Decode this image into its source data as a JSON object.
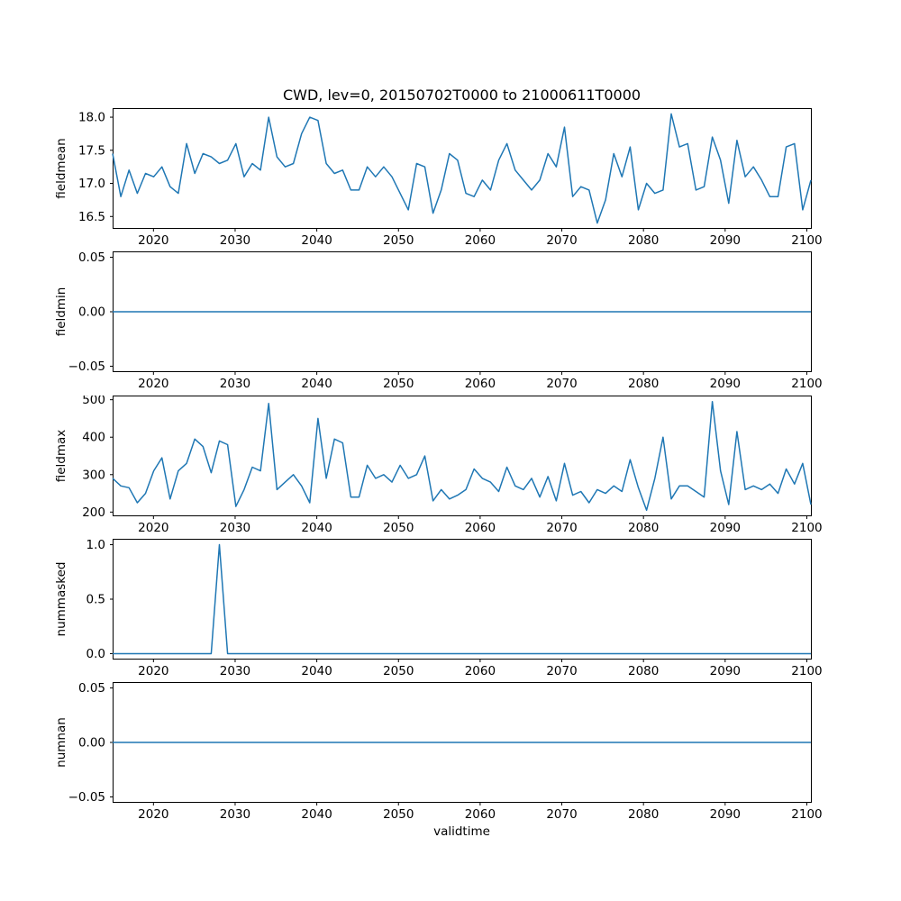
{
  "chart_title": "CWD, lev=0, 20150702T0000 to 21000611T0000",
  "xlabel": "validtime",
  "line_color": "#1f77b4",
  "chart_data": [
    {
      "type": "line",
      "ylabel": "fieldmean",
      "ylim": [
        16.32,
        18.13
      ],
      "yticks": [
        16.5,
        17.0,
        17.5,
        18.0
      ],
      "ytick_labels": [
        "16.5",
        "17.0",
        "17.5",
        "18.0"
      ],
      "xlim": [
        2015,
        2100.5
      ],
      "xticks": [
        2020,
        2030,
        2040,
        2050,
        2060,
        2070,
        2080,
        2090,
        2100
      ],
      "x": {
        "start": 2015,
        "end": 2100,
        "step": 1,
        "count": 86
      },
      "values": [
        17.45,
        16.8,
        17.2,
        16.85,
        17.15,
        17.1,
        17.25,
        16.95,
        16.85,
        17.6,
        17.15,
        17.45,
        17.4,
        17.3,
        17.35,
        17.6,
        17.1,
        17.3,
        17.2,
        18.0,
        17.4,
        17.25,
        17.3,
        17.75,
        18.0,
        17.95,
        17.3,
        17.15,
        17.2,
        16.9,
        16.9,
        17.25,
        17.1,
        17.25,
        17.1,
        16.85,
        16.6,
        17.3,
        17.25,
        16.55,
        16.9,
        17.45,
        17.35,
        16.85,
        16.8,
        17.05,
        16.9,
        17.35,
        17.6,
        17.2,
        17.05,
        16.9,
        17.05,
        17.45,
        17.25,
        17.85,
        16.8,
        16.95,
        16.9,
        16.4,
        16.75,
        17.45,
        17.1,
        17.55,
        16.6,
        17.0,
        16.85,
        16.9,
        18.05,
        17.55,
        17.6,
        16.9,
        16.95,
        17.7,
        17.35,
        16.7,
        17.65,
        17.1,
        17.25,
        17.05,
        16.8,
        16.8,
        17.55,
        17.6,
        16.6,
        17.05
      ]
    },
    {
      "type": "line",
      "ylabel": "fieldmin",
      "ylim": [
        -0.055,
        0.055
      ],
      "yticks": [
        -0.05,
        0.0,
        0.05
      ],
      "ytick_labels": [
        "−0.05",
        "0.00",
        "0.05"
      ],
      "xlim": [
        2015,
        2100.5
      ],
      "xticks": [
        2020,
        2030,
        2040,
        2050,
        2060,
        2070,
        2080,
        2090,
        2100
      ],
      "x": {
        "start": 2015,
        "end": 2100,
        "step": 1,
        "count": 86
      },
      "values": [
        0,
        0,
        0,
        0,
        0,
        0,
        0,
        0,
        0,
        0,
        0,
        0,
        0,
        0,
        0,
        0,
        0,
        0,
        0,
        0,
        0,
        0,
        0,
        0,
        0,
        0,
        0,
        0,
        0,
        0,
        0,
        0,
        0,
        0,
        0,
        0,
        0,
        0,
        0,
        0,
        0,
        0,
        0,
        0,
        0,
        0,
        0,
        0,
        0,
        0,
        0,
        0,
        0,
        0,
        0,
        0,
        0,
        0,
        0,
        0,
        0,
        0,
        0,
        0,
        0,
        0,
        0,
        0,
        0,
        0,
        0,
        0,
        0,
        0,
        0,
        0,
        0,
        0,
        0,
        0,
        0,
        0,
        0,
        0,
        0,
        0
      ]
    },
    {
      "type": "line",
      "ylabel": "fieldmax",
      "ylim": [
        190,
        510
      ],
      "yticks": [
        200,
        300,
        400,
        500
      ],
      "ytick_labels": [
        "200",
        "300",
        "400",
        "500"
      ],
      "xlim": [
        2015,
        2100.5
      ],
      "xticks": [
        2020,
        2030,
        2040,
        2050,
        2060,
        2070,
        2080,
        2090,
        2100
      ],
      "x": {
        "start": 2015,
        "end": 2100,
        "step": 1,
        "count": 86
      },
      "values": [
        290,
        270,
        265,
        225,
        250,
        310,
        345,
        235,
        310,
        330,
        395,
        375,
        305,
        390,
        380,
        215,
        260,
        320,
        310,
        490,
        260,
        280,
        300,
        270,
        225,
        450,
        290,
        395,
        385,
        240,
        240,
        325,
        290,
        300,
        280,
        325,
        290,
        300,
        350,
        230,
        260,
        235,
        245,
        260,
        315,
        290,
        280,
        255,
        320,
        270,
        260,
        290,
        240,
        295,
        230,
        330,
        245,
        255,
        225,
        260,
        250,
        270,
        255,
        340,
        265,
        205,
        290,
        400,
        235,
        270,
        270,
        255,
        240,
        495,
        310,
        220,
        415,
        260,
        270,
        260,
        275,
        250,
        315,
        275,
        330,
        220
      ]
    },
    {
      "type": "line",
      "ylabel": "nummasked",
      "ylim": [
        -0.05,
        1.05
      ],
      "yticks": [
        0.0,
        0.5,
        1.0
      ],
      "ytick_labels": [
        "0.0",
        "0.5",
        "1.0"
      ],
      "xlim": [
        2015,
        2100.5
      ],
      "xticks": [
        2020,
        2030,
        2040,
        2050,
        2060,
        2070,
        2080,
        2090,
        2100
      ],
      "x": {
        "start": 2015,
        "end": 2100,
        "step": 1,
        "count": 86
      },
      "values": [
        0,
        0,
        0,
        0,
        0,
        0,
        0,
        0,
        0,
        0,
        0,
        0,
        0,
        1,
        0,
        0,
        0,
        0,
        0,
        0,
        0,
        0,
        0,
        0,
        0,
        0,
        0,
        0,
        0,
        0,
        0,
        0,
        0,
        0,
        0,
        0,
        0,
        0,
        0,
        0,
        0,
        0,
        0,
        0,
        0,
        0,
        0,
        0,
        0,
        0,
        0,
        0,
        0,
        0,
        0,
        0,
        0,
        0,
        0,
        0,
        0,
        0,
        0,
        0,
        0,
        0,
        0,
        0,
        0,
        0,
        0,
        0,
        0,
        0,
        0,
        0,
        0,
        0,
        0,
        0,
        0,
        0,
        0,
        0,
        0,
        0
      ]
    },
    {
      "type": "line",
      "ylabel": "numnan",
      "ylim": [
        -0.055,
        0.055
      ],
      "yticks": [
        -0.05,
        0.0,
        0.05
      ],
      "ytick_labels": [
        "−0.05",
        "0.00",
        "0.05"
      ],
      "xlim": [
        2015,
        2100.5
      ],
      "xticks": [
        2020,
        2030,
        2040,
        2050,
        2060,
        2070,
        2080,
        2090,
        2100
      ],
      "x": {
        "start": 2015,
        "end": 2100,
        "step": 1,
        "count": 86
      },
      "values": [
        0,
        0,
        0,
        0,
        0,
        0,
        0,
        0,
        0,
        0,
        0,
        0,
        0,
        0,
        0,
        0,
        0,
        0,
        0,
        0,
        0,
        0,
        0,
        0,
        0,
        0,
        0,
        0,
        0,
        0,
        0,
        0,
        0,
        0,
        0,
        0,
        0,
        0,
        0,
        0,
        0,
        0,
        0,
        0,
        0,
        0,
        0,
        0,
        0,
        0,
        0,
        0,
        0,
        0,
        0,
        0,
        0,
        0,
        0,
        0,
        0,
        0,
        0,
        0,
        0,
        0,
        0,
        0,
        0,
        0,
        0,
        0,
        0,
        0,
        0,
        0,
        0,
        0,
        0,
        0,
        0,
        0,
        0,
        0,
        0,
        0
      ]
    }
  ]
}
